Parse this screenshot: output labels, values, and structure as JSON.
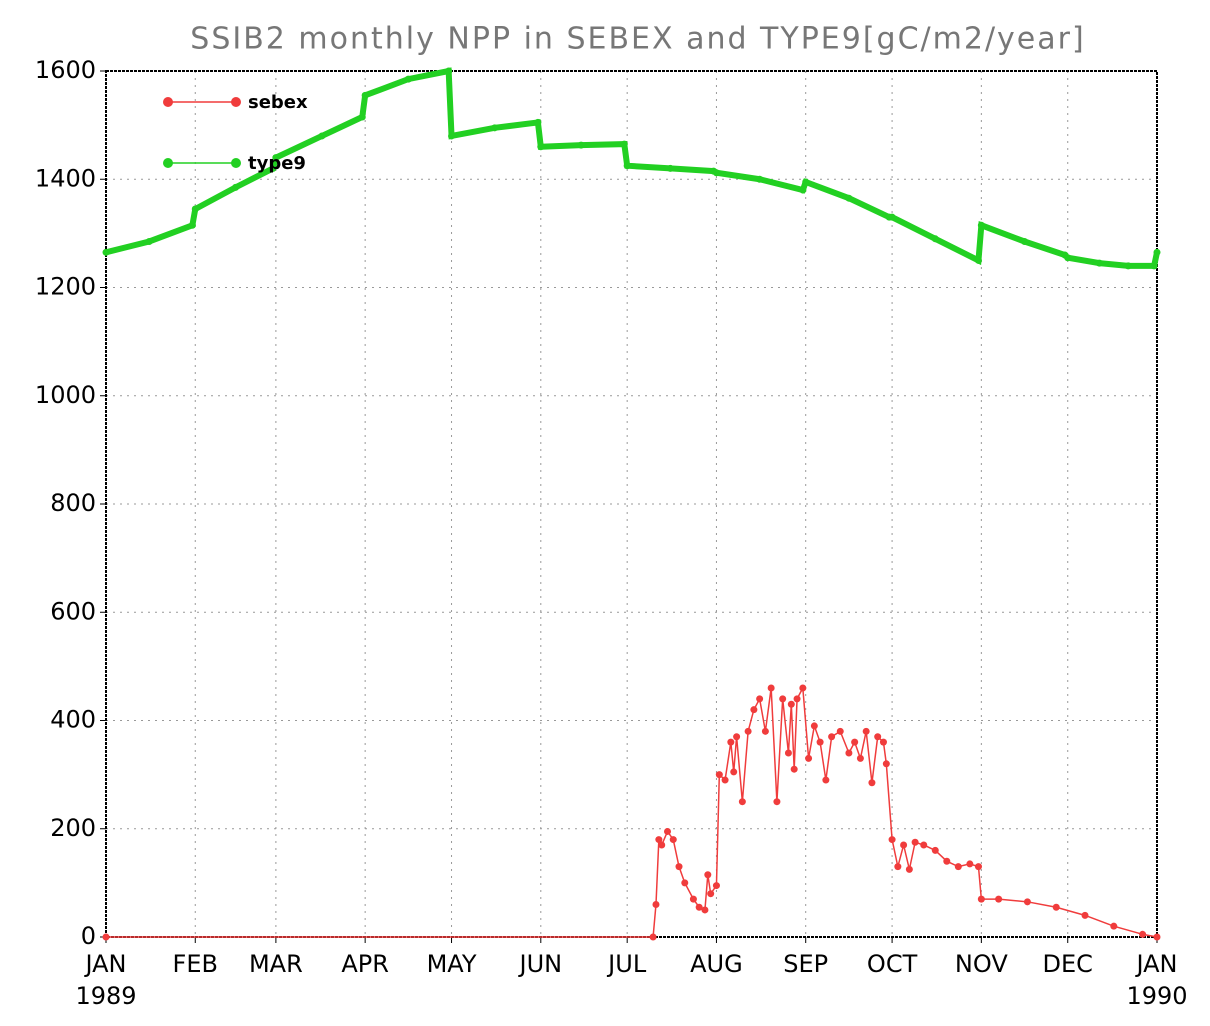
{
  "chart_data": {
    "type": "line",
    "title": "SSIB2 monthly NPP in SEBEX and TYPE9[gC/m2/year]",
    "xlim": [
      0,
      365
    ],
    "xticks": [
      {
        "value": 0,
        "label": "JAN",
        "year": "1989"
      },
      {
        "value": 31,
        "label": "FEB"
      },
      {
        "value": 59,
        "label": "MAR"
      },
      {
        "value": 90,
        "label": "APR"
      },
      {
        "value": 120,
        "label": "MAY"
      },
      {
        "value": 151,
        "label": "JUN"
      },
      {
        "value": 181,
        "label": "JUL"
      },
      {
        "value": 212,
        "label": "AUG"
      },
      {
        "value": 243,
        "label": "SEP"
      },
      {
        "value": 273,
        "label": "OCT"
      },
      {
        "value": 304,
        "label": "NOV"
      },
      {
        "value": 334,
        "label": "DEC"
      },
      {
        "value": 365,
        "label": "JAN",
        "year": "1990"
      }
    ],
    "ylim": [
      0,
      1600
    ],
    "yticks": [
      0,
      200,
      400,
      600,
      800,
      1000,
      1200,
      1400,
      1600
    ],
    "grid": true,
    "legend": "upper-left",
    "series": [
      {
        "name": "sebex",
        "color": "#f03c3c",
        "x": [
          0,
          190,
          191,
          192,
          193,
          195,
          197,
          199,
          201,
          204,
          206,
          208,
          209,
          210,
          212,
          213,
          215,
          217,
          218,
          219,
          221,
          223,
          225,
          227,
          229,
          231,
          233,
          235,
          237,
          238,
          239,
          240,
          242,
          244,
          246,
          248,
          250,
          252,
          255,
          258,
          260,
          262,
          264,
          266,
          268,
          270,
          271,
          273,
          275,
          277,
          279,
          281,
          284,
          288,
          292,
          296,
          300,
          303,
          304,
          310,
          320,
          330,
          340,
          350,
          360,
          365
        ],
        "values": [
          0,
          0,
          60,
          180,
          170,
          195,
          180,
          130,
          100,
          70,
          55,
          50,
          115,
          80,
          95,
          300,
          290,
          360,
          305,
          370,
          250,
          380,
          420,
          440,
          380,
          460,
          250,
          440,
          340,
          430,
          310,
          440,
          460,
          330,
          390,
          360,
          290,
          370,
          380,
          340,
          360,
          330,
          380,
          285,
          370,
          360,
          320,
          180,
          130,
          170,
          125,
          175,
          170,
          160,
          140,
          130,
          135,
          130,
          70,
          70,
          65,
          55,
          40,
          20,
          5,
          0
        ]
      },
      {
        "name": "type9",
        "color": "#22d022",
        "x": [
          0,
          15,
          30,
          31,
          45,
          58,
          59,
          75,
          89,
          90,
          105,
          119,
          120,
          135,
          150,
          151,
          165,
          180,
          181,
          196,
          211,
          212,
          227,
          242,
          243,
          258,
          272,
          273,
          288,
          303,
          304,
          319,
          333,
          334,
          345,
          355,
          364,
          365
        ],
        "values": [
          1265,
          1285,
          1315,
          1345,
          1385,
          1420,
          1440,
          1480,
          1515,
          1555,
          1585,
          1600,
          1480,
          1495,
          1505,
          1460,
          1463,
          1465,
          1425,
          1420,
          1415,
          1412,
          1400,
          1380,
          1395,
          1365,
          1330,
          1330,
          1290,
          1250,
          1315,
          1285,
          1260,
          1255,
          1245,
          1240,
          1240,
          1265
        ]
      }
    ]
  }
}
